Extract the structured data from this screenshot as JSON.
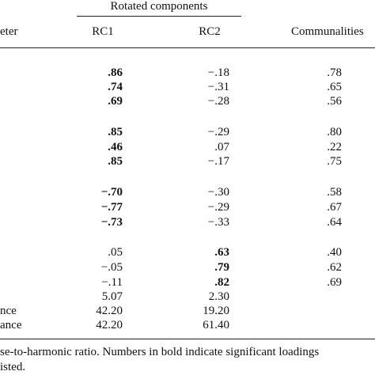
{
  "table": {
    "group_header": "Rotated components",
    "columns": [
      "eter",
      "RC1",
      "RC2",
      "Communalities"
    ],
    "rows": [
      {
        "label": null,
        "cells": [
          ".86",
          "−.18",
          ".78"
        ],
        "bold_column": 0
      },
      {
        "label": null,
        "cells": [
          ".74",
          "−.31",
          ".65"
        ],
        "bold_column": 0
      },
      {
        "label": null,
        "cells": [
          ".69",
          "−.28",
          ".56"
        ],
        "bold_column": 0
      },
      {
        "label": null,
        "cells": [
          ".85",
          "−.29",
          ".80"
        ],
        "bold_column": 0
      },
      {
        "label": null,
        "cells": [
          ".46",
          ".07",
          ".22"
        ],
        "bold_column": 0
      },
      {
        "label": null,
        "cells": [
          ".85",
          "−.17",
          ".75"
        ],
        "bold_column": 0
      },
      {
        "label": null,
        "cells": [
          "−.70",
          "−.30",
          ".58"
        ],
        "bold_column": 0
      },
      {
        "label": null,
        "cells": [
          "−.77",
          "−.29",
          ".67"
        ],
        "bold_column": 0
      },
      {
        "label": null,
        "cells": [
          "−.73",
          "−.33",
          ".64"
        ],
        "bold_column": 0
      },
      {
        "label": null,
        "cells": [
          ".05",
          ".63",
          ".40"
        ],
        "bold_column": 1
      },
      {
        "label": null,
        "cells": [
          "−.05",
          ".79",
          ".62"
        ],
        "bold_column": 1
      },
      {
        "label": null,
        "cells": [
          "−.11",
          ".82",
          ".69"
        ],
        "bold_column": 1
      },
      {
        "label": null,
        "cells": [
          "5.07",
          "2.30",
          null
        ],
        "bold_column": null
      },
      {
        "label": "nce",
        "cells": [
          "42.20",
          "19.20",
          null
        ],
        "bold_column": null
      },
      {
        "label": "ance",
        "cells": [
          "42.20",
          "61.40",
          null
        ],
        "bold_column": null
      }
    ],
    "footnote": [
      "se-to-harmonic ratio. Numbers in bold indicate significant loadings",
      "isted."
    ]
  }
}
